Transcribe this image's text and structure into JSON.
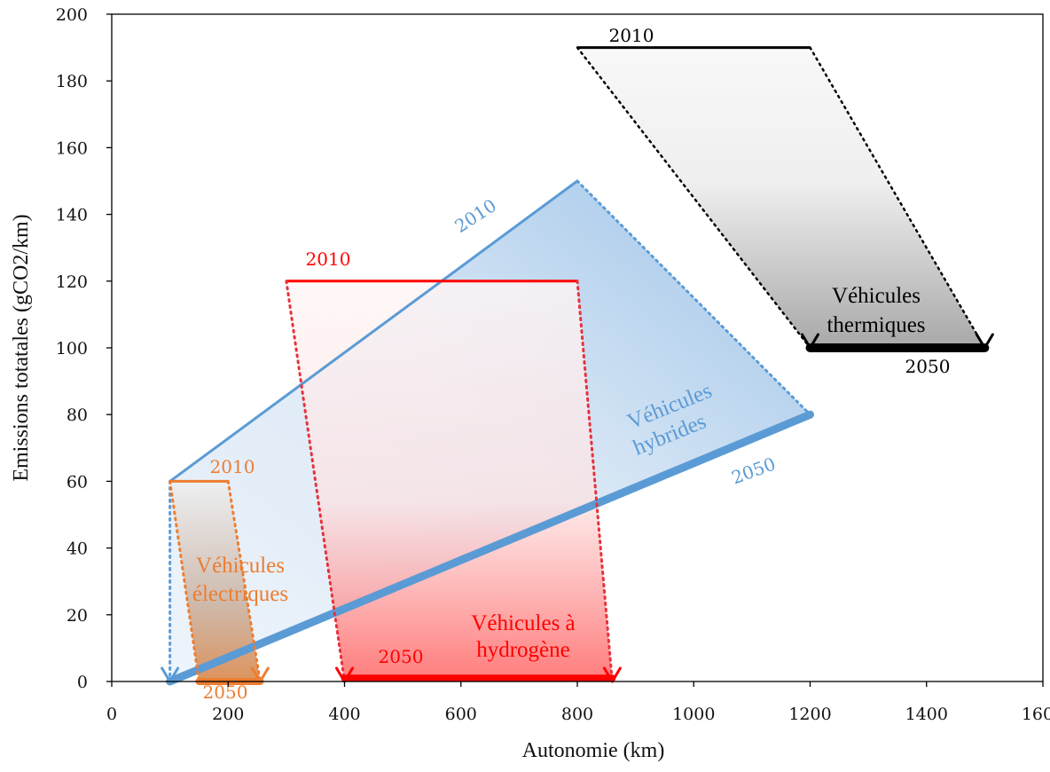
{
  "chart_data": {
    "type": "area",
    "xlabel": "Autonomie (km)",
    "ylabel": "Emissions totatales (gCO2/km)",
    "xlim": [
      0,
      1600
    ],
    "ylim": [
      0,
      200
    ],
    "xticks": [
      "0",
      "200",
      "400",
      "600",
      "800",
      "1000",
      "1200",
      "1400",
      "1600"
    ],
    "yticks": [
      "0",
      "20",
      "40",
      "60",
      "80",
      "100",
      "120",
      "140",
      "160",
      "180",
      "200"
    ],
    "grid": false,
    "legend": "none",
    "series": [
      {
        "key": "thermal",
        "label": [
          "Véhicules",
          "thermiques"
        ],
        "color": "#000000",
        "label_2010": "2010",
        "label_2050": "2050",
        "segment_2010": [
          [
            800,
            190
          ],
          [
            1200,
            190
          ]
        ],
        "segment_2050": [
          [
            1200,
            100
          ],
          [
            1500,
            100
          ]
        ]
      },
      {
        "key": "hybrid",
        "label": [
          "Véhicules",
          "hybrides"
        ],
        "color": "#5b9bd5",
        "label_2010": "2010",
        "label_2050": "2050",
        "segment_2010": [
          [
            100,
            60
          ],
          [
            800,
            150
          ]
        ],
        "segment_2050": [
          [
            100,
            0
          ],
          [
            1200,
            80
          ]
        ]
      },
      {
        "key": "hydrogen",
        "label": [
          "Véhicules à",
          "hydrogène"
        ],
        "color": "#ff0000",
        "label_2010": "2010",
        "label_2050": "2050",
        "segment_2010": [
          [
            300,
            120
          ],
          [
            800,
            120
          ]
        ],
        "segment_2050": [
          [
            400,
            1
          ],
          [
            860,
            1
          ]
        ]
      },
      {
        "key": "electric",
        "label": [
          "Véhicules",
          "électriques"
        ],
        "color": "#ed7d31",
        "label_2010": "2010",
        "label_2050": "2050",
        "segment_2010": [
          [
            100,
            60
          ],
          [
            200,
            60
          ]
        ],
        "segment_2050": [
          [
            150,
            0
          ],
          [
            255,
            0
          ]
        ]
      }
    ]
  }
}
